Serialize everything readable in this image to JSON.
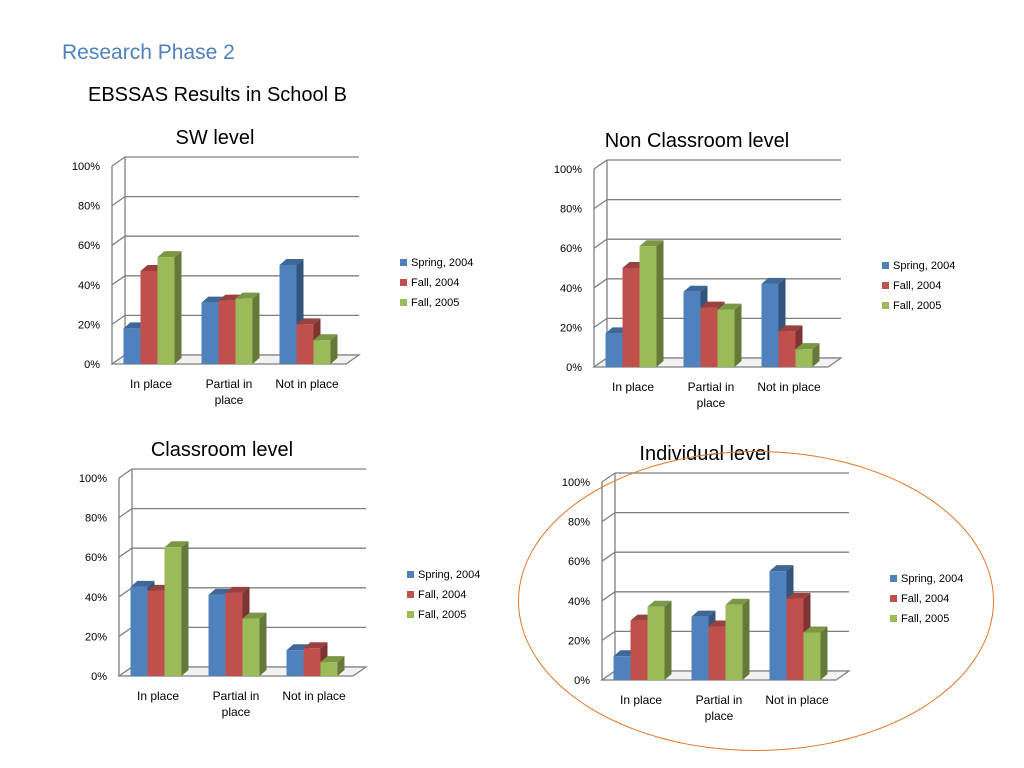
{
  "slide": {
    "title": "Research Phase 2",
    "subtitle": "EBSSAS Results in School B",
    "title_color": "#4f81bd",
    "highlight_color": "#e07828"
  },
  "chart_data": [
    {
      "type": "bar",
      "title": "SW level",
      "categories": [
        "In place",
        "Partial in place",
        "Not in place"
      ],
      "ylim": [
        0,
        100
      ],
      "yticks": [
        "0%",
        "20%",
        "40%",
        "60%",
        "80%",
        "100%"
      ],
      "series": [
        {
          "name": "Spring, 2004",
          "color": "#4f81bd",
          "values": [
            18,
            31,
            50
          ]
        },
        {
          "name": "Fall, 2004",
          "color": "#c0504d",
          "values": [
            47,
            32,
            20
          ]
        },
        {
          "name": "Fall, 2005",
          "color": "#9bbb59",
          "values": [
            54,
            33,
            12
          ]
        }
      ],
      "grid": true,
      "legend": "right"
    },
    {
      "type": "bar",
      "title": "Non Classroom level",
      "categories": [
        "In place",
        "Partial in place",
        "Not in place"
      ],
      "ylim": [
        0,
        100
      ],
      "yticks": [
        "0%",
        "20%",
        "40%",
        "60%",
        "80%",
        "100%"
      ],
      "series": [
        {
          "name": "Spring, 2004",
          "color": "#4f81bd",
          "values": [
            17,
            38,
            42
          ]
        },
        {
          "name": "Fall, 2004",
          "color": "#c0504d",
          "values": [
            50,
            30,
            18
          ]
        },
        {
          "name": "Fall, 2005",
          "color": "#9bbb59",
          "values": [
            61,
            29,
            9
          ]
        }
      ],
      "grid": true,
      "legend": "right"
    },
    {
      "type": "bar",
      "title": "Classroom level",
      "categories": [
        "In place",
        "Partial in place",
        "Not in place"
      ],
      "ylim": [
        0,
        100
      ],
      "yticks": [
        "0%",
        "20%",
        "40%",
        "60%",
        "80%",
        "100%"
      ],
      "series": [
        {
          "name": "Spring, 2004",
          "color": "#4f81bd",
          "values": [
            45,
            41,
            13
          ]
        },
        {
          "name": "Fall, 2004",
          "color": "#c0504d",
          "values": [
            43,
            42,
            14
          ]
        },
        {
          "name": "Fall, 2005",
          "color": "#9bbb59",
          "values": [
            65,
            29,
            7
          ]
        }
      ],
      "grid": true,
      "legend": "right"
    },
    {
      "type": "bar",
      "title": "Individual level",
      "categories": [
        "In place",
        "Partial in place",
        "Not in place"
      ],
      "ylim": [
        0,
        100
      ],
      "yticks": [
        "0%",
        "20%",
        "40%",
        "60%",
        "80%",
        "100%"
      ],
      "series": [
        {
          "name": "Spring, 2004",
          "color": "#4f81bd",
          "values": [
            12,
            32,
            55
          ]
        },
        {
          "name": "Fall, 2004",
          "color": "#c0504d",
          "values": [
            30,
            27,
            41
          ]
        },
        {
          "name": "Fall, 2005",
          "color": "#9bbb59",
          "values": [
            37,
            38,
            24
          ]
        }
      ],
      "grid": true,
      "legend": "right",
      "highlighted": true
    }
  ]
}
